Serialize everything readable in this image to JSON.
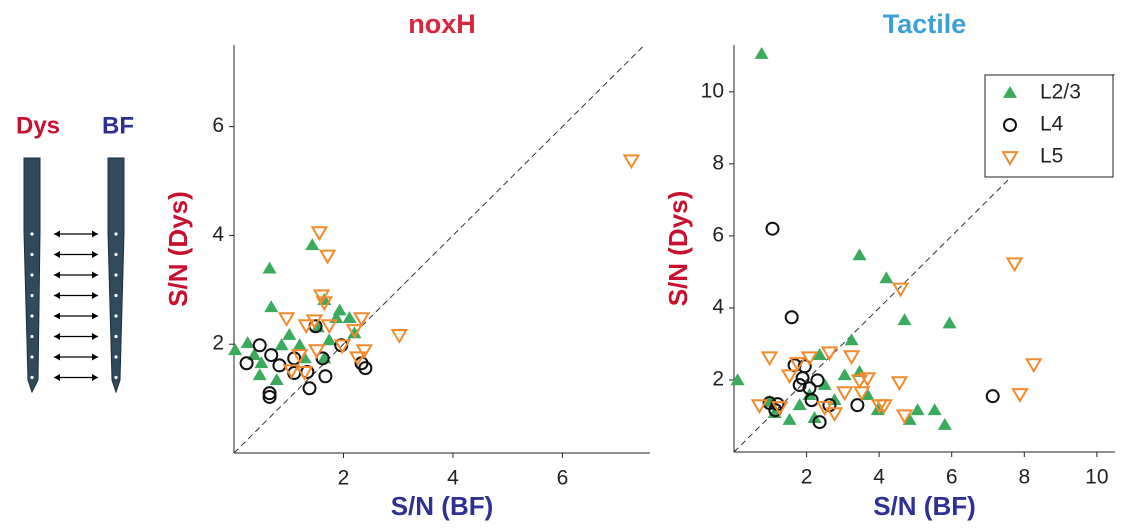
{
  "illustration": {
    "left_label": "Dys",
    "right_label": "BF"
  },
  "chart_data": [
    {
      "type": "scatter",
      "title": "noxH",
      "title_color": "#d7263d",
      "x_label": "S/N (BF)",
      "x_label_color": "#2e3192",
      "y_label": "S/N (Dys)",
      "y_label_color": "#c8102e",
      "xlim": [
        0,
        7.6
      ],
      "ylim": [
        0,
        7.5
      ],
      "xticks": [
        2,
        4,
        6
      ],
      "yticks": [
        2,
        4,
        6
      ],
      "series": [
        {
          "name": "L2/3",
          "color": "#3aaa5c",
          "marker": "^",
          "x": [
            0.02,
            0.25,
            0.37,
            0.47,
            0.5,
            0.65,
            0.68,
            0.78,
            0.87,
            1.01,
            1.2,
            1.29,
            1.43,
            1.53,
            1.65,
            1.74,
            1.87,
            1.93,
            2.11,
            2.2,
            1.65
          ],
          "values": [
            1.89,
            2.02,
            1.8,
            1.43,
            1.65,
            3.39,
            2.68,
            1.34,
            1.98,
            2.17,
            1.98,
            1.74,
            3.82,
            2.31,
            2.81,
            2.07,
            2.48,
            2.62,
            2.48,
            2.2,
            1.74
          ]
        },
        {
          "name": "L4",
          "color": "#111111",
          "marker": "o",
          "x": [
            0.23,
            0.47,
            0.65,
            0.65,
            0.68,
            0.83,
            1.1,
            1.1,
            1.34,
            1.38,
            1.49,
            1.62,
            1.67,
            1.96,
            2.33,
            2.4
          ],
          "values": [
            1.65,
            1.98,
            1.1,
            1.03,
            1.8,
            1.61,
            1.74,
            1.47,
            1.49,
            1.19,
            2.33,
            1.74,
            1.41,
            1.98,
            1.65,
            1.56
          ]
        },
        {
          "name": "L5",
          "color": "#f28a2e",
          "marker": "v",
          "x": [
            7.26,
            1.56,
            1.71,
            1.6,
            1.65,
            0.96,
            1.32,
            1.47,
            1.74,
            2.33,
            2.2,
            3.02,
            2.38,
            1.51,
            1.2,
            1.05,
            1.29,
            2.26,
            1.98
          ],
          "values": [
            5.38,
            4.06,
            3.63,
            2.9,
            2.77,
            2.48,
            2.35,
            2.44,
            2.35,
            2.48,
            2.26,
            2.17,
            1.89,
            1.89,
            1.8,
            1.52,
            1.49,
            1.76,
            1.98
          ]
        }
      ]
    },
    {
      "type": "scatter",
      "title": "Tactile",
      "title_color": "#3da0d5",
      "x_label": "S/N (BF)",
      "x_label_color": "#2e3192",
      "y_label": "S/N (Dys)",
      "y_label_color": "#c8102e",
      "xlim": [
        0,
        10.5
      ],
      "ylim": [
        0,
        11.3
      ],
      "xticks": [
        2,
        4,
        6,
        8,
        10
      ],
      "yticks": [
        2,
        4,
        6,
        8,
        10
      ],
      "legend": "upper right",
      "series": [
        {
          "name": "L2/3",
          "color": "#3aaa5c",
          "marker": "^",
          "x": [
            0.76,
            0.1,
            0.98,
            1.12,
            1.53,
            1.81,
            2.08,
            2.22,
            2.36,
            2.5,
            2.77,
            3.05,
            3.24,
            3.46,
            3.46,
            3.68,
            3.96,
            4.2,
            4.7,
            4.84,
            5.06,
            5.53,
            5.94,
            5.81
          ],
          "values": [
            11.05,
            1.99,
            1.39,
            1.08,
            0.89,
            1.3,
            1.58,
            0.94,
            2.69,
            1.86,
            1.44,
            2.13,
            3.1,
            5.46,
            2.22,
            1.58,
            1.16,
            4.82,
            3.66,
            0.89,
            1.16,
            1.16,
            3.57,
            0.75
          ]
        },
        {
          "name": "L4",
          "color": "#111111",
          "marker": "o",
          "x": [
            1.06,
            1.59,
            0.98,
            1.14,
            1.2,
            1.67,
            1.81,
            1.89,
            1.95,
            2.08,
            2.14,
            2.3,
            2.36,
            2.63,
            3.4,
            7.13
          ],
          "values": [
            6.2,
            3.74,
            1.36,
            1.16,
            1.33,
            2.41,
            1.86,
            2.05,
            2.38,
            1.77,
            1.44,
            1.99,
            0.83,
            1.3,
            1.3,
            1.55
          ]
        },
        {
          "name": "L5",
          "color": "#f28a2e",
          "marker": "v",
          "x": [
            7.73,
            4.59,
            8.26,
            7.88,
            0.98,
            1.53,
            1.75,
            2.08,
            2.63,
            3.24,
            3.46,
            3.52,
            3.68,
            4.01,
            4.56,
            4.7,
            0.7,
            1.26,
            3.05,
            2.5,
            2.77,
            4.14
          ],
          "values": [
            5.24,
            4.54,
            2.44,
            1.61,
            2.63,
            2.13,
            2.47,
            2.63,
            2.77,
            2.66,
            1.99,
            1.66,
            2.05,
            1.3,
            1.94,
            1.02,
            1.3,
            1.25,
            1.66,
            1.25,
            1.08,
            1.3
          ]
        }
      ]
    }
  ]
}
